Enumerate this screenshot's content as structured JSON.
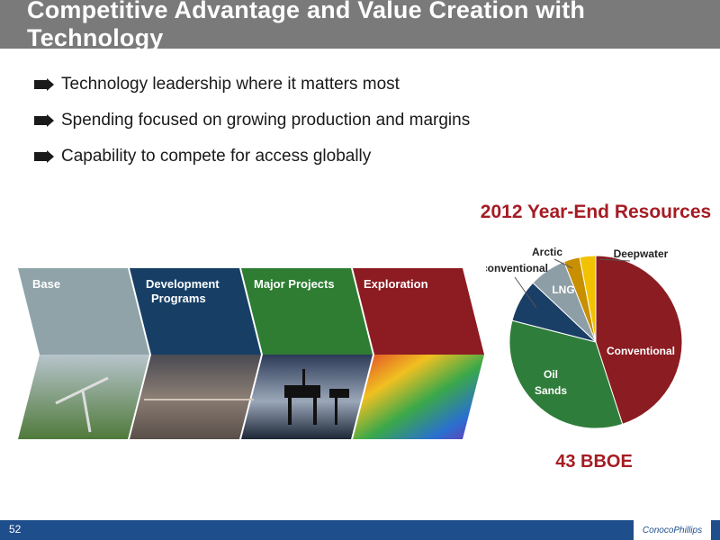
{
  "slide": {
    "title": "Competitive Advantage and Value Creation with Technology",
    "page_number": "52",
    "logo_text": "ConocoPhillips"
  },
  "bullets": [
    "Technology leadership where it matters most",
    "Spending focused on growing production and margins",
    "Capability to compete for access globally"
  ],
  "stages": [
    {
      "line1": "Base",
      "line2": "",
      "color": "#8fa3a8"
    },
    {
      "line1": "Development",
      "line2": "Programs",
      "color": "#173f66"
    },
    {
      "line1": "Major Projects",
      "line2": "",
      "color": "#2e7d32"
    },
    {
      "line1": "Exploration",
      "line2": "",
      "color": "#8c1c22"
    }
  ],
  "colors": {
    "accent": "#a51c24",
    "title_bar": "#7a7a7a",
    "footer": "#1f4e8c"
  },
  "chart_data": {
    "type": "pie",
    "title": "2012 Year-End Resources",
    "total_label": "43 BBOE",
    "slices": [
      {
        "label": "Conventional",
        "value": 45,
        "color": "#8b1c22"
      },
      {
        "label": "Oil Sands",
        "value": 34,
        "color": "#2f7d3a"
      },
      {
        "label": "Unconventional",
        "value": 8,
        "color": "#1a3f66"
      },
      {
        "label": "LNG",
        "value": 7,
        "color": "#8e9ea6"
      },
      {
        "label": "Arctic",
        "value": 3,
        "color": "#c88f00"
      },
      {
        "label": "Deepwater",
        "value": 3,
        "color": "#f2c200"
      }
    ]
  }
}
